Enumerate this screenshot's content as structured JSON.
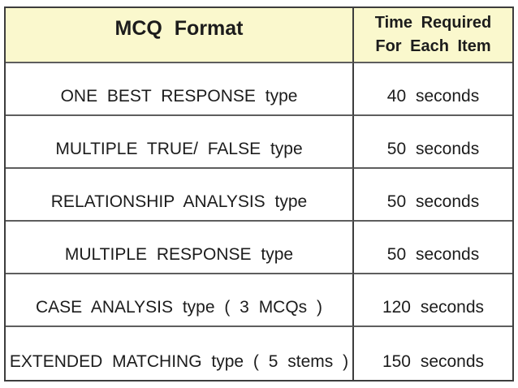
{
  "table": {
    "header": {
      "format_label": "MCQ Format",
      "time_label_line1": "Time Required",
      "time_label_line2": "For Each Item"
    },
    "rows": [
      {
        "format": "ONE BEST RESPONSE type",
        "time": "40 seconds"
      },
      {
        "format": "MULTIPLE TRUE/ FALSE type",
        "time": "50 seconds"
      },
      {
        "format": "RELATIONSHIP ANALYSIS type",
        "time": "50 seconds"
      },
      {
        "format": "MULTIPLE RESPONSE type",
        "time": "50 seconds"
      },
      {
        "format": "CASE ANALYSIS type ( 3 MCQs )",
        "time": "120 seconds"
      },
      {
        "format": "EXTENDED MATCHING type ( 5 stems )",
        "time": "150 seconds"
      }
    ],
    "colors": {
      "header_bg": "#FAF8CD",
      "border_outer": "#3d3d3d",
      "border_inner": "#5e5e5e",
      "text": "#1c1c1c",
      "page_bg": "#ffffff"
    }
  }
}
